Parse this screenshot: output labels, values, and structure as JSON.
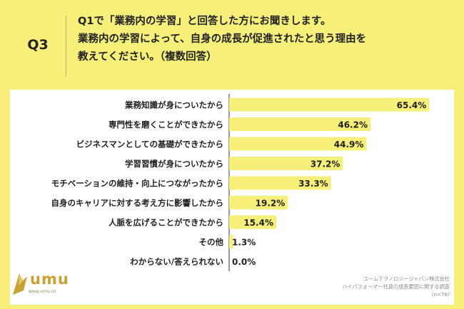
{
  "question": {
    "number": "Q3",
    "line1": "Q1で「業務内の学習」と回答した方にお聞きします。",
    "line2": "業務内の学習によって、自身の成長が促進されたと思う理由を",
    "line3": "教えてください。（複数回答）"
  },
  "logo": {
    "word": "umu",
    "url": "www.umu.co"
  },
  "source": {
    "line1": "ユームテクノロジージャパン株式会社",
    "line2": "ハイパフォーマー社員の成長要因に関する調査",
    "line3": "(n=78)"
  },
  "colors": {
    "background": "#f6ef7a",
    "bar": "#f6ef7a",
    "panel": "#ffffff",
    "axis": "#333333"
  },
  "chart_data": {
    "type": "bar",
    "orientation": "horizontal",
    "categories": [
      "業務知識が身についたから",
      "専門性を磨くことができたから",
      "ビジネスマンとしての基礎ができたから",
      "学習習慣が身についたから",
      "モチベーションの維持・向上につながったから",
      "自身のキャリアに対する考え方に影響したから",
      "人脈を広げることができたから",
      "その他",
      "わからない/答えられない"
    ],
    "values": [
      65.4,
      46.2,
      44.9,
      37.2,
      33.3,
      19.2,
      15.4,
      1.3,
      0.0
    ],
    "value_labels": [
      "65.4%",
      "46.2%",
      "44.9%",
      "37.2%",
      "33.3%",
      "19.2%",
      "15.4%",
      "1.3%",
      "0.0%"
    ],
    "xlim": [
      0,
      70
    ],
    "title": "",
    "xlabel": "",
    "ylabel": "",
    "grid": false,
    "legend": "none"
  }
}
